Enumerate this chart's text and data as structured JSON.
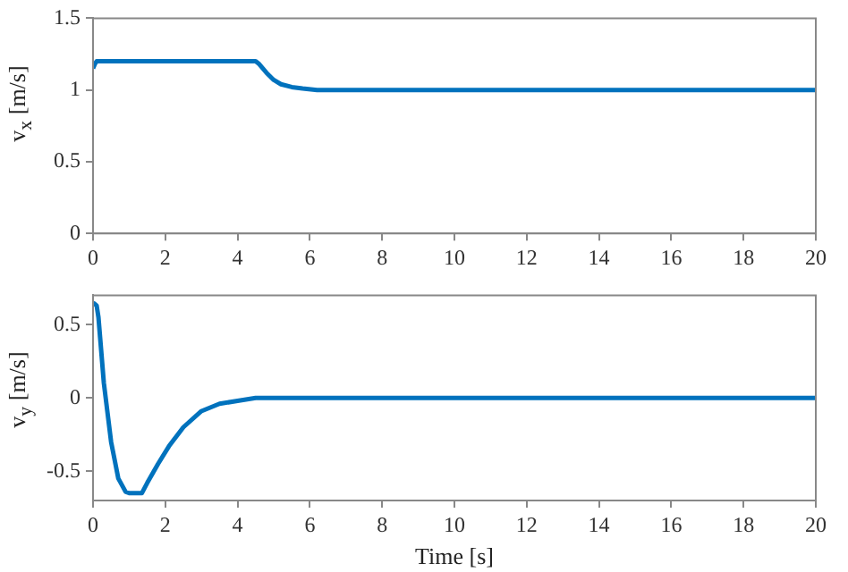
{
  "chart_data": [
    {
      "type": "line",
      "ylabel": "v$_{x}$ [m/s]",
      "x": [
        0,
        0.05,
        0.1,
        0.2,
        4.5,
        4.6,
        4.8,
        5.0,
        5.2,
        5.5,
        5.8,
        6.2,
        7,
        20
      ],
      "series": [
        {
          "color": "#0072bd",
          "values": [
            1.15,
            1.18,
            1.2,
            1.2,
            1.2,
            1.18,
            1.12,
            1.07,
            1.04,
            1.02,
            1.01,
            1.0,
            1.0,
            1.0
          ]
        }
      ],
      "xlim": [
        0,
        20
      ],
      "xticks": [
        0,
        2,
        4,
        6,
        8,
        10,
        12,
        14,
        16,
        18,
        20
      ],
      "ylim": [
        0,
        1.5
      ],
      "yticks": [
        0,
        0.5,
        1,
        1.5
      ],
      "grid": false,
      "legend": false,
      "marker": "none",
      "line_style": "solid"
    },
    {
      "type": "line",
      "xlabel": "Time [s]",
      "ylabel": "v$_{y}$ [m/s]",
      "x": [
        0,
        0.05,
        0.1,
        0.15,
        0.3,
        0.5,
        0.7,
        0.9,
        1.0,
        1.35,
        1.5,
        1.8,
        2.1,
        2.5,
        3.0,
        3.5,
        4.0,
        4.5,
        5,
        6,
        20
      ],
      "series": [
        {
          "color": "#0072bd",
          "values": [
            0.65,
            0.64,
            0.63,
            0.55,
            0.1,
            -0.3,
            -0.55,
            -0.64,
            -0.65,
            -0.65,
            -0.58,
            -0.45,
            -0.33,
            -0.2,
            -0.09,
            -0.04,
            -0.02,
            0,
            0,
            0,
            0
          ]
        }
      ],
      "xlim": [
        0,
        20
      ],
      "xticks": [
        0,
        2,
        4,
        6,
        8,
        10,
        12,
        14,
        16,
        18,
        20
      ],
      "ylim": [
        -0.7,
        0.7
      ],
      "yticks": [
        -0.5,
        0,
        0.5
      ],
      "grid": false,
      "legend": false,
      "marker": "none",
      "line_style": "solid"
    }
  ]
}
